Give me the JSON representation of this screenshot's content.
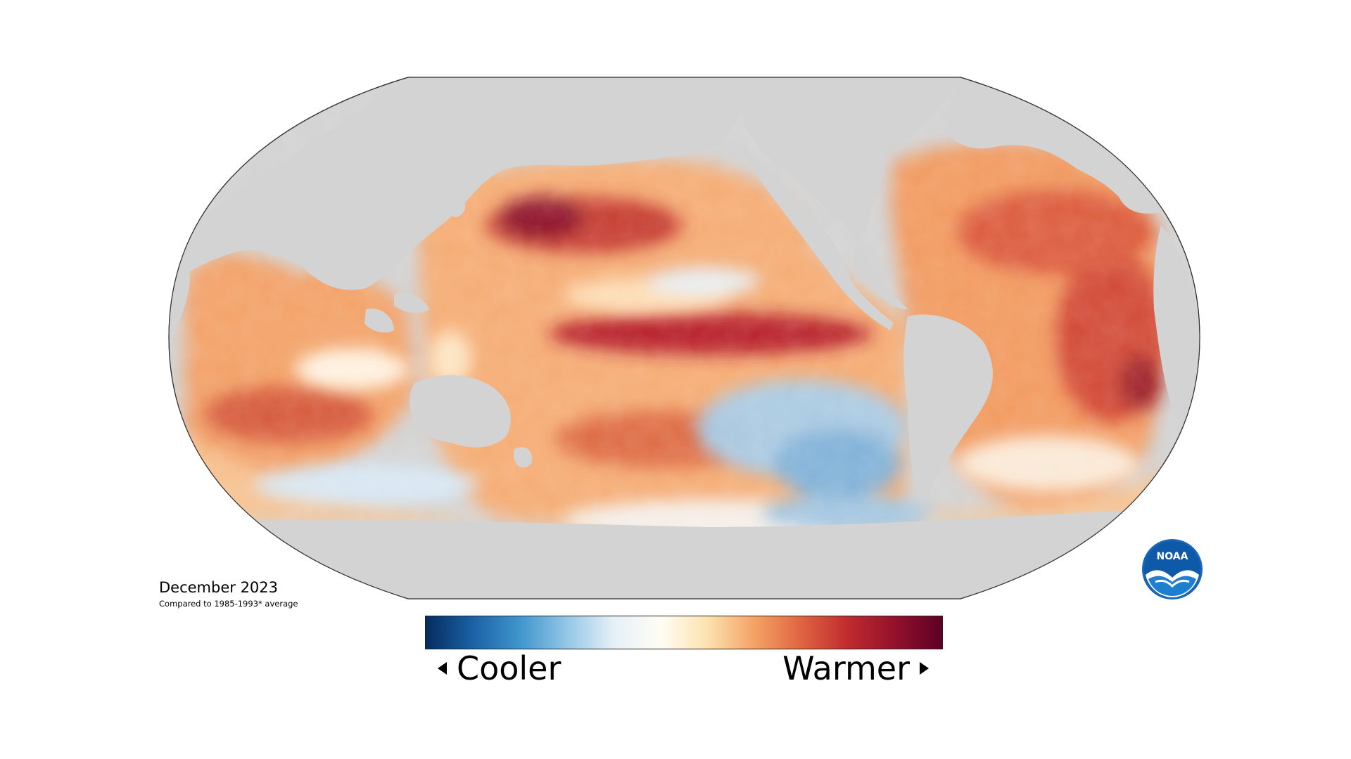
{
  "map": {
    "projection": "robinson-style world map",
    "land_color": "#d3d3d3",
    "ocean_colorscale": [
      "#062d61",
      "#2a6fb5",
      "#6fb0de",
      "#d6e8f5",
      "#fdfbf5",
      "#fbdca9",
      "#f3a36b",
      "#e06a43",
      "#c0272c",
      "#8a0f2a",
      "#5a0020"
    ]
  },
  "caption": {
    "title": "December 2023",
    "subtitle": "Compared to 1985-1993* average"
  },
  "legend": {
    "cooler_label": "Cooler",
    "warmer_label": "Warmer",
    "colors": [
      "#052c5f",
      "#1b61a5",
      "#3f95cc",
      "#93c6e6",
      "#e6f0f7",
      "#fffdf4",
      "#fce2b0",
      "#f4a265",
      "#e06442",
      "#c02a2e",
      "#93112c",
      "#5c0025"
    ]
  },
  "logo": {
    "text": "NOAA",
    "icon": "noaa-logo"
  }
}
